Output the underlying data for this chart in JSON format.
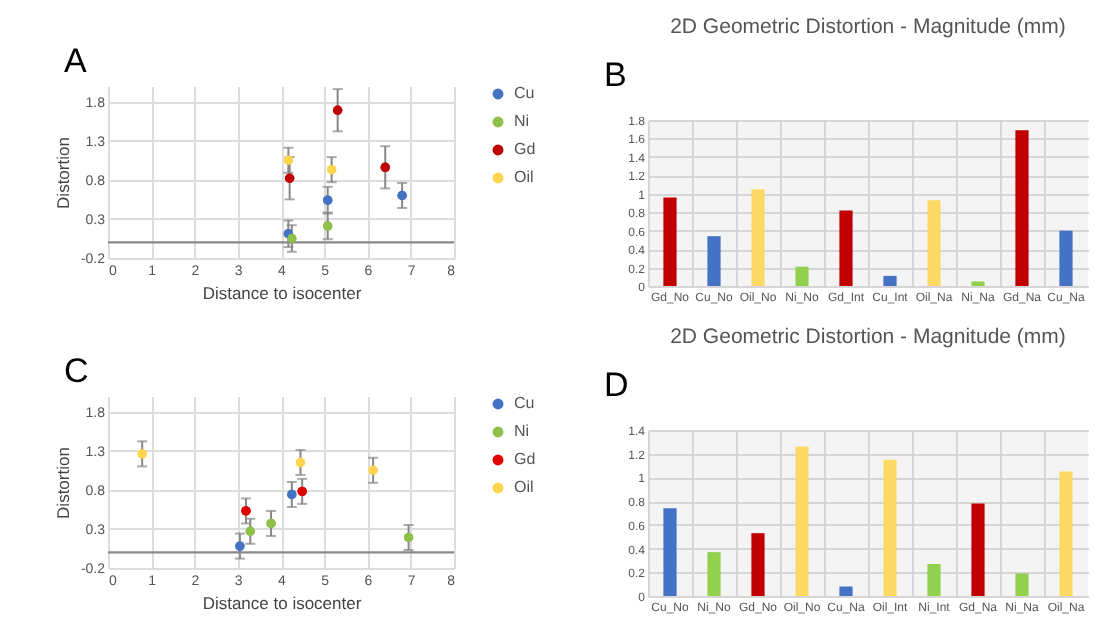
{
  "chart_data": [
    {
      "type": "scatter",
      "annotations": [
        "A"
      ],
      "xlabel": "Distance to isocenter",
      "ylabel": "Distortion",
      "xlim": [
        0,
        8
      ],
      "ylim": [
        -0.2,
        2.0
      ],
      "xticks": [
        0,
        1,
        2,
        3,
        4,
        5,
        6,
        7,
        8
      ],
      "yticks": [
        -0.2,
        0.3,
        0.8,
        1.3,
        1.8
      ],
      "grid": true,
      "legend": "right",
      "marker": "circle",
      "ref_lines": [
        {
          "axis": "y",
          "value": 0,
          "color": "#888888"
        }
      ],
      "series": [
        {
          "name": "Cu",
          "color": "#4472c4",
          "x": [
            4.17,
            5.08,
            6.8
          ],
          "values": [
            0.11,
            0.54,
            0.6
          ],
          "errors": [
            0.17,
            0.17,
            0.16
          ]
        },
        {
          "name": "Ni",
          "color": "#8fc04a",
          "x": [
            4.25,
            5.08
          ],
          "values": [
            0.05,
            0.21
          ],
          "errors": [
            0.17,
            0.17
          ]
        },
        {
          "name": "Gd",
          "color": "#c00000",
          "x": [
            4.2,
            5.31,
            6.41
          ],
          "values": [
            0.82,
            1.69,
            0.96
          ],
          "errors": [
            0.27,
            0.27,
            0.27
          ]
        },
        {
          "name": "Oil",
          "color": "#ffd54f",
          "x": [
            4.17,
            5.17
          ],
          "values": [
            1.05,
            0.93
          ],
          "errors": [
            0.16,
            0.16
          ]
        }
      ]
    },
    {
      "type": "bar",
      "annotations": [
        "B"
      ],
      "title": "2D Geometric Distortion - Magnitude (mm)",
      "categories": [
        "Gd_No",
        "Cu_No",
        "Oil_No",
        "Ni_No",
        "Gd_Int",
        "Cu_Int",
        "Oil_Na",
        "Ni_Na",
        "Gd_Na",
        "Cu_Na"
      ],
      "values": [
        0.96,
        0.54,
        1.05,
        0.21,
        0.82,
        0.11,
        0.93,
        0.05,
        1.69,
        0.6
      ],
      "colors": [
        "#c00000",
        "#4472c4",
        "#ffd966",
        "#92d050",
        "#c00000",
        "#4472c4",
        "#ffd966",
        "#92d050",
        "#c00000",
        "#4472c4"
      ],
      "ylim": [
        0,
        1.8
      ],
      "yticks": [
        0,
        0.2,
        0.4,
        0.6,
        0.8,
        1,
        1.2,
        1.4,
        1.6,
        1.8
      ],
      "grid": true
    },
    {
      "type": "scatter",
      "annotations": [
        "C"
      ],
      "xlabel": "Distance to isocenter",
      "ylabel": "Distortion",
      "xlim": [
        0,
        8
      ],
      "ylim": [
        -0.2,
        2.0
      ],
      "xticks": [
        0,
        1,
        2,
        3,
        4,
        5,
        6,
        7,
        8
      ],
      "yticks": [
        -0.2,
        0.3,
        0.8,
        1.3,
        1.8
      ],
      "grid": true,
      "legend": "right",
      "marker": "circle",
      "ref_lines": [
        {
          "axis": "y",
          "value": 0,
          "color": "#888888"
        }
      ],
      "series": [
        {
          "name": "Cu",
          "color": "#4472c4",
          "x": [
            4.25,
            3.05
          ],
          "values": [
            0.74,
            0.08
          ],
          "errors": [
            0.16,
            0.16
          ]
        },
        {
          "name": "Ni",
          "color": "#8fc04a",
          "x": [
            3.29,
            3.77,
            6.95
          ],
          "values": [
            0.27,
            0.37,
            0.19
          ],
          "errors": [
            0.16,
            0.16,
            0.16
          ]
        },
        {
          "name": "Gd",
          "color": "#e00000",
          "x": [
            3.19,
            4.49
          ],
          "values": [
            0.53,
            0.78
          ],
          "errors": [
            0.16,
            0.16
          ]
        },
        {
          "name": "Oil",
          "color": "#ffd54f",
          "x": [
            0.79,
            4.45,
            6.13
          ],
          "values": [
            1.26,
            1.15,
            1.05
          ],
          "errors": [
            0.16,
            0.16,
            0.16
          ]
        }
      ]
    },
    {
      "type": "bar",
      "annotations": [
        "D"
      ],
      "title": "2D Geometric Distortion - Magnitude (mm)",
      "categories": [
        "Cu_No",
        "Ni_No",
        "Gd_No",
        "Oil_No",
        "Cu_Na",
        "Oil_Int",
        "Ni_Int",
        "Gd_Na",
        "Ni_Na",
        "Oil_Na"
      ],
      "values": [
        0.74,
        0.37,
        0.53,
        1.26,
        0.08,
        1.15,
        0.27,
        0.78,
        0.19,
        1.05
      ],
      "colors": [
        "#4472c4",
        "#92d050",
        "#c00000",
        "#ffd966",
        "#4472c4",
        "#ffd966",
        "#92d050",
        "#c00000",
        "#92d050",
        "#ffd966"
      ],
      "ylim": [
        0,
        1.4
      ],
      "yticks": [
        0,
        0.2,
        0.4,
        0.6,
        0.8,
        1,
        1.2,
        1.4
      ],
      "grid": true
    }
  ]
}
